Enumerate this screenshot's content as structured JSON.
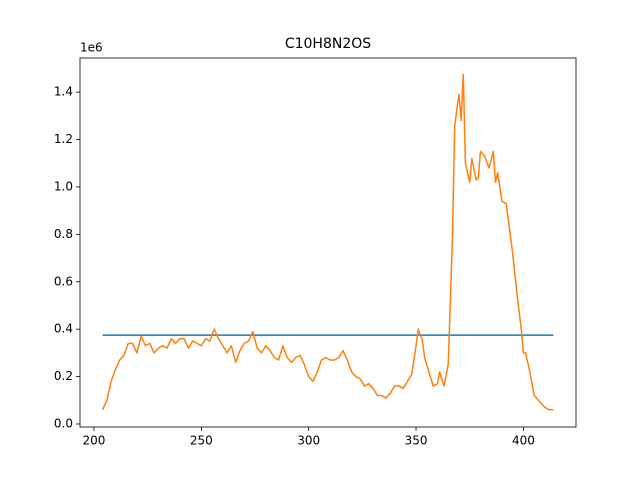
{
  "chart_data": {
    "type": "line",
    "title": "C10H8N2OS",
    "y_offset_label": "1e6",
    "xlim": [
      193.5,
      424.5
    ],
    "xticks": [
      200,
      250,
      300,
      350,
      400
    ],
    "ylim": [
      -0.0127,
      1.544
    ],
    "yticks": [
      {
        "value": 0,
        "label": "0.0"
      },
      0.2,
      0.4,
      0.6,
      0.8,
      {
        "value": 1,
        "label": "1.0"
      },
      1.2,
      1.4
    ],
    "series": [
      {
        "color": "#1f77b4",
        "x": [
          204,
          414
        ],
        "values": [
          0.375,
          0.375
        ]
      },
      {
        "color": "#ff7f0e",
        "x": [
          204,
          206,
          208,
          210,
          212,
          214,
          216,
          218,
          220,
          222,
          224,
          226,
          228,
          230,
          232,
          234,
          236,
          238,
          240,
          242,
          244,
          246,
          248,
          250,
          252,
          254,
          256,
          258,
          260,
          262,
          264,
          266,
          268,
          270,
          272,
          274,
          276,
          278,
          280,
          282,
          284,
          286,
          288,
          290,
          292,
          294,
          296,
          298,
          300,
          302,
          304,
          306,
          308,
          310,
          312,
          314,
          316,
          318,
          320,
          322,
          324,
          326,
          328,
          330,
          332,
          334,
          336,
          338,
          340,
          342,
          344,
          346,
          348,
          350,
          351,
          353,
          354,
          356,
          358,
          360,
          361,
          363,
          365,
          367,
          368,
          370,
          371,
          372,
          373,
          375,
          376,
          378,
          379,
          380,
          382,
          384,
          386,
          387,
          388,
          390,
          392,
          393,
          395,
          397,
          399,
          400,
          401,
          403,
          405,
          408,
          410,
          412,
          414
        ],
        "values": [
          0.06,
          0.1,
          0.18,
          0.23,
          0.27,
          0.29,
          0.34,
          0.34,
          0.3,
          0.37,
          0.33,
          0.34,
          0.3,
          0.32,
          0.33,
          0.32,
          0.36,
          0.34,
          0.36,
          0.36,
          0.32,
          0.35,
          0.34,
          0.33,
          0.36,
          0.35,
          0.4,
          0.36,
          0.33,
          0.3,
          0.33,
          0.26,
          0.31,
          0.34,
          0.35,
          0.39,
          0.32,
          0.3,
          0.33,
          0.31,
          0.28,
          0.27,
          0.33,
          0.28,
          0.26,
          0.28,
          0.29,
          0.25,
          0.2,
          0.18,
          0.22,
          0.27,
          0.28,
          0.27,
          0.27,
          0.28,
          0.31,
          0.27,
          0.22,
          0.2,
          0.19,
          0.16,
          0.17,
          0.15,
          0.12,
          0.12,
          0.11,
          0.13,
          0.16,
          0.16,
          0.15,
          0.18,
          0.21,
          0.33,
          0.4,
          0.35,
          0.28,
          0.22,
          0.16,
          0.17,
          0.22,
          0.16,
          0.25,
          0.8,
          1.26,
          1.39,
          1.28,
          1.475,
          1.1,
          1.02,
          1.12,
          1.03,
          1.04,
          1.15,
          1.13,
          1.08,
          1.15,
          1.02,
          1.06,
          0.94,
          0.93,
          0.86,
          0.72,
          0.55,
          0.4,
          0.3,
          0.3,
          0.22,
          0.12,
          0.09,
          0.07,
          0.06,
          0.06
        ]
      }
    ]
  }
}
